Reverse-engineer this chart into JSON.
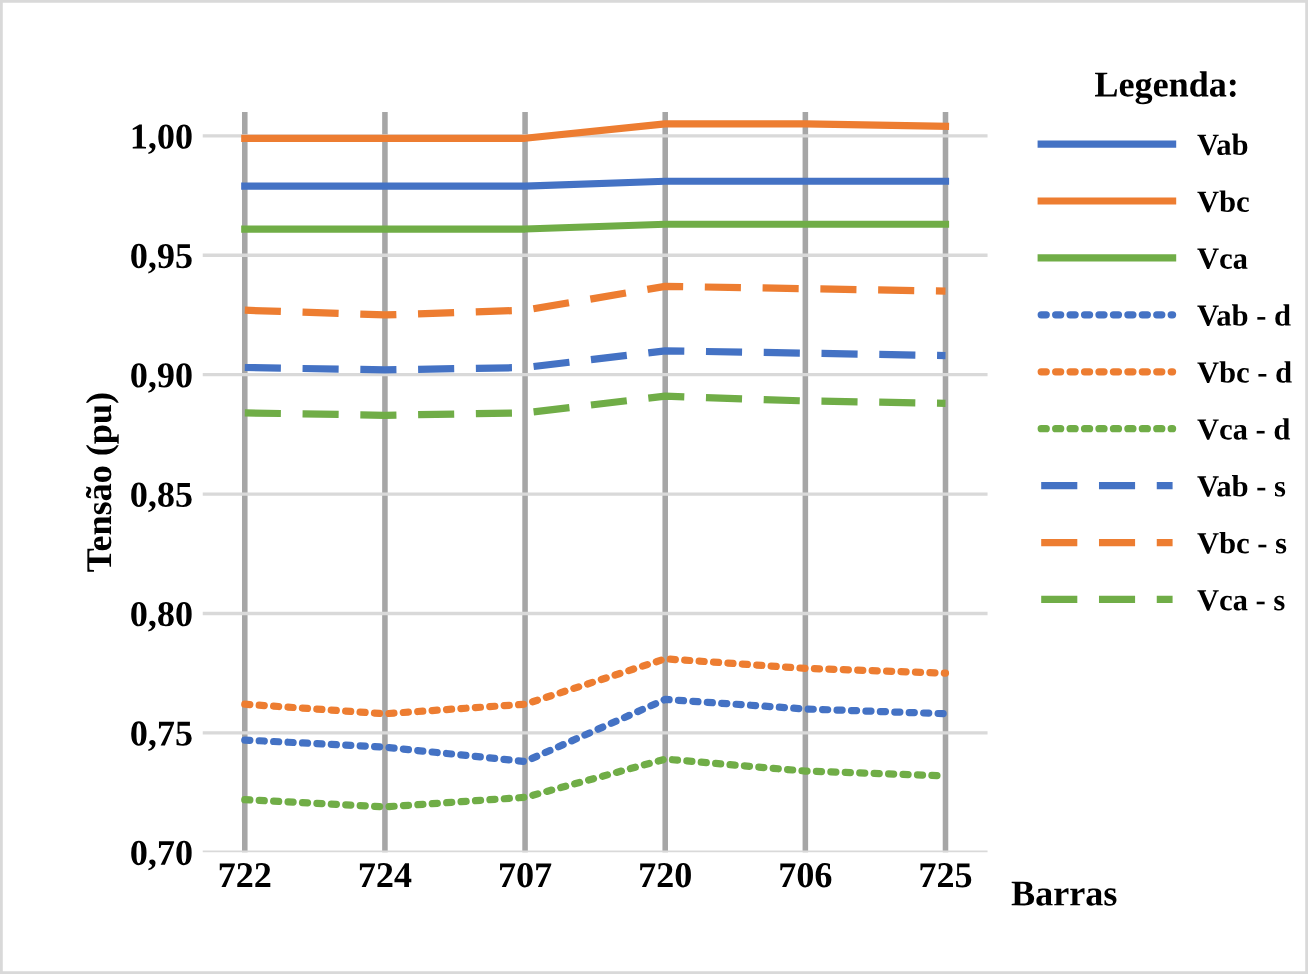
{
  "chart_data": {
    "type": "line",
    "xlabel": "Barras",
    "ylabel": "Tensão (pu)",
    "legend_title": "Legenda:",
    "legend": "right",
    "grid": true,
    "categories": [
      "722",
      "724",
      "707",
      "720",
      "706",
      "725"
    ],
    "ylim": [
      0.7,
      1.01
    ],
    "yticks": [
      {
        "value": 0.7,
        "label": "0,70"
      },
      {
        "value": 0.75,
        "label": "0,75"
      },
      {
        "value": 0.8,
        "label": "0,80"
      },
      {
        "value": 0.85,
        "label": "0,85"
      },
      {
        "value": 0.9,
        "label": "0,90"
      },
      {
        "value": 0.95,
        "label": "0,95"
      },
      {
        "value": 1.0,
        "label": "1,00"
      }
    ],
    "series": [
      {
        "name": "Vab",
        "color": "#4472c4",
        "line_style": "solid",
        "values": [
          0.979,
          0.979,
          0.979,
          0.981,
          0.981,
          0.981
        ]
      },
      {
        "name": "Vbc",
        "color": "#ed7d31",
        "line_style": "solid",
        "values": [
          0.999,
          0.999,
          0.999,
          1.005,
          1.005,
          1.004
        ]
      },
      {
        "name": "Vca",
        "color": "#70ad47",
        "line_style": "solid",
        "values": [
          0.961,
          0.961,
          0.961,
          0.963,
          0.963,
          0.963
        ]
      },
      {
        "name": "Vab - d",
        "color": "#4472c4",
        "line_style": "dotted",
        "values": [
          0.747,
          0.744,
          0.738,
          0.764,
          0.76,
          0.758
        ]
      },
      {
        "name": "Vbc - d",
        "color": "#ed7d31",
        "line_style": "dotted",
        "values": [
          0.762,
          0.758,
          0.762,
          0.781,
          0.777,
          0.775
        ]
      },
      {
        "name": "Vca - d",
        "color": "#70ad47",
        "line_style": "dotted",
        "values": [
          0.722,
          0.719,
          0.723,
          0.739,
          0.734,
          0.732
        ]
      },
      {
        "name": "Vab - s",
        "color": "#4472c4",
        "line_style": "dashed",
        "values": [
          0.903,
          0.902,
          0.903,
          0.91,
          0.909,
          0.908
        ]
      },
      {
        "name": "Vbc - s",
        "color": "#ed7d31",
        "line_style": "dashed",
        "values": [
          0.927,
          0.925,
          0.927,
          0.937,
          0.936,
          0.935
        ]
      },
      {
        "name": "Vca - s",
        "color": "#70ad47",
        "line_style": "dashed",
        "values": [
          0.884,
          0.883,
          0.884,
          0.891,
          0.889,
          0.888
        ]
      }
    ]
  }
}
